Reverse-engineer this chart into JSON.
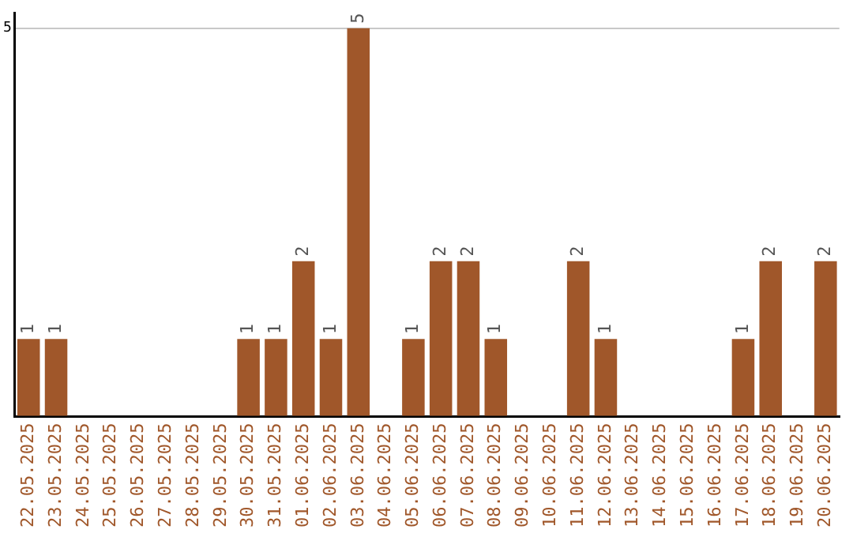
{
  "chart_data": {
    "type": "bar",
    "categories": [
      "22.05.2025",
      "23.05.2025",
      "24.05.2025",
      "25.05.2025",
      "26.05.2025",
      "27.05.2025",
      "28.05.2025",
      "29.05.2025",
      "30.05.2025",
      "31.05.2025",
      "01.06.2025",
      "02.06.2025",
      "03.06.2025",
      "04.06.2025",
      "05.06.2025",
      "06.06.2025",
      "07.06.2025",
      "08.06.2025",
      "09.06.2025",
      "10.06.2025",
      "11.06.2025",
      "12.06.2025",
      "13.06.2025",
      "14.06.2025",
      "15.06.2025",
      "16.06.2025",
      "17.06.2025",
      "18.06.2025",
      "19.06.2025",
      "20.06.2025"
    ],
    "values": [
      1,
      1,
      0,
      0,
      0,
      0,
      0,
      0,
      1,
      1,
      2,
      1,
      5,
      0,
      1,
      2,
      2,
      1,
      0,
      0,
      2,
      1,
      0,
      0,
      0,
      0,
      1,
      2,
      0,
      2
    ],
    "value_labels": [
      "1",
      "1",
      null,
      null,
      null,
      null,
      null,
      null,
      "1",
      "1",
      "2",
      "1",
      "5",
      null,
      "1",
      "2",
      "2",
      "1",
      null,
      null,
      "2",
      "1",
      null,
      null,
      null,
      null,
      "1",
      "2",
      null,
      "2"
    ],
    "color": "#a0572a",
    "ylim": [
      0,
      5.2
    ],
    "yticks": [
      {
        "value": 0,
        "label": null
      },
      5
    ],
    "grid": "y"
  }
}
